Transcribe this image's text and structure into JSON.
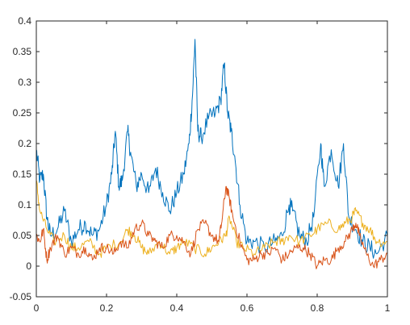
{
  "chart_data": {
    "type": "line",
    "title": "",
    "xlabel": "",
    "ylabel": "",
    "xlim": [
      0,
      1
    ],
    "ylim": [
      -0.05,
      0.4
    ],
    "grid": false,
    "legend": "none",
    "x_ticks": [
      {
        "value": 0,
        "label": "0"
      },
      {
        "value": 0.2,
        "label": "0.2"
      },
      {
        "value": 0.4,
        "label": "0.4"
      },
      {
        "value": 0.6,
        "label": "0.6"
      },
      {
        "value": 0.8,
        "label": "0.8"
      },
      {
        "value": 1,
        "label": "1"
      }
    ],
    "y_ticks": [
      {
        "value": -0.05,
        "label": "-0.05"
      },
      {
        "value": 0,
        "label": "0"
      },
      {
        "value": 0.05,
        "label": "0.05"
      },
      {
        "value": 0.1,
        "label": "0.1"
      },
      {
        "value": 0.15,
        "label": "0.15"
      },
      {
        "value": 0.2,
        "label": "0.2"
      },
      {
        "value": 0.25,
        "label": "0.25"
      },
      {
        "value": 0.3,
        "label": "0.3"
      },
      {
        "value": 0.35,
        "label": "0.35"
      },
      {
        "value": 0.4,
        "label": "0.4"
      }
    ],
    "series": [
      {
        "color": "#0072BD",
        "x": [
          0,
          0.01,
          0.02,
          0.03,
          0.04,
          0.06,
          0.08,
          0.1,
          0.12,
          0.14,
          0.16,
          0.18,
          0.2,
          0.215,
          0.225,
          0.235,
          0.245,
          0.26,
          0.27,
          0.285,
          0.3,
          0.32,
          0.34,
          0.36,
          0.38,
          0.4,
          0.42,
          0.435,
          0.445,
          0.452,
          0.46,
          0.47,
          0.49,
          0.51,
          0.525,
          0.535,
          0.545,
          0.555,
          0.565,
          0.58,
          0.6,
          0.62,
          0.65,
          0.68,
          0.7,
          0.72,
          0.73,
          0.75,
          0.77,
          0.79,
          0.81,
          0.82,
          0.84,
          0.86,
          0.875,
          0.89,
          0.91,
          0.93,
          0.95,
          0.97,
          1
        ],
        "y": [
          0.19,
          0.14,
          0.15,
          0.08,
          0.05,
          0.06,
          0.09,
          0.04,
          0.06,
          0.07,
          0.05,
          0.06,
          0.1,
          0.15,
          0.22,
          0.13,
          0.14,
          0.22,
          0.18,
          0.13,
          0.15,
          0.12,
          0.16,
          0.12,
          0.09,
          0.12,
          0.15,
          0.2,
          0.28,
          0.37,
          0.22,
          0.21,
          0.24,
          0.25,
          0.27,
          0.33,
          0.25,
          0.22,
          0.18,
          0.1,
          0.04,
          0.04,
          0.03,
          0.04,
          0.05,
          0.1,
          0.09,
          0.05,
          0.04,
          0.08,
          0.2,
          0.13,
          0.19,
          0.13,
          0.2,
          0.08,
          0.06,
          0.04,
          0.03,
          0.02,
          0.05
        ]
      },
      {
        "color": "#EDB120",
        "x": [
          0,
          0.01,
          0.03,
          0.05,
          0.08,
          0.1,
          0.12,
          0.15,
          0.18,
          0.2,
          0.24,
          0.26,
          0.28,
          0.3,
          0.32,
          0.35,
          0.38,
          0.4,
          0.42,
          0.45,
          0.48,
          0.5,
          0.52,
          0.54,
          0.55,
          0.57,
          0.59,
          0.62,
          0.65,
          0.68,
          0.7,
          0.72,
          0.75,
          0.78,
          0.8,
          0.83,
          0.86,
          0.88,
          0.9,
          0.91,
          0.93,
          0.95,
          0.97,
          1
        ],
        "y": [
          0.14,
          0.09,
          0.06,
          0.04,
          0.05,
          0.03,
          0.03,
          0.04,
          0.02,
          0.03,
          0.04,
          0.06,
          0.05,
          0.03,
          0.02,
          0.04,
          0.02,
          0.03,
          0.04,
          0.03,
          0.02,
          0.03,
          0.04,
          0.05,
          0.08,
          0.04,
          0.03,
          0.02,
          0.03,
          0.04,
          0.04,
          0.05,
          0.04,
          0.05,
          0.06,
          0.07,
          0.06,
          0.07,
          0.08,
          0.09,
          0.07,
          0.06,
          0.04,
          0.04
        ]
      },
      {
        "color": "#D95319",
        "x": [
          0,
          0.01,
          0.02,
          0.03,
          0.04,
          0.06,
          0.08,
          0.1,
          0.12,
          0.14,
          0.16,
          0.18,
          0.2,
          0.22,
          0.24,
          0.26,
          0.28,
          0.3,
          0.32,
          0.34,
          0.36,
          0.38,
          0.4,
          0.42,
          0.44,
          0.46,
          0.48,
          0.5,
          0.52,
          0.53,
          0.54,
          0.55,
          0.56,
          0.58,
          0.6,
          0.62,
          0.64,
          0.66,
          0.68,
          0.7,
          0.72,
          0.74,
          0.76,
          0.78,
          0.8,
          0.82,
          0.84,
          0.86,
          0.88,
          0.9,
          0.91,
          0.92,
          0.94,
          0.96,
          0.98,
          1
        ],
        "y": [
          0.05,
          0.04,
          0.06,
          0.01,
          0.03,
          0.05,
          0.02,
          0.03,
          0.02,
          0.03,
          0.01,
          0.03,
          0.03,
          0.02,
          0.04,
          0.03,
          0.06,
          0.07,
          0.05,
          0.04,
          0.03,
          0.05,
          0.05,
          0.04,
          0.02,
          0.06,
          0.07,
          0.05,
          0.04,
          0.08,
          0.13,
          0.11,
          0.08,
          0.04,
          0.01,
          0.01,
          0.02,
          0.02,
          0.03,
          0.01,
          0.02,
          0.03,
          0.03,
          0.02,
          0.0,
          0.01,
          0.01,
          0.03,
          0.04,
          0.06,
          0.07,
          0.05,
          0.02,
          0.0,
          0.01,
          0.02
        ]
      }
    ]
  }
}
